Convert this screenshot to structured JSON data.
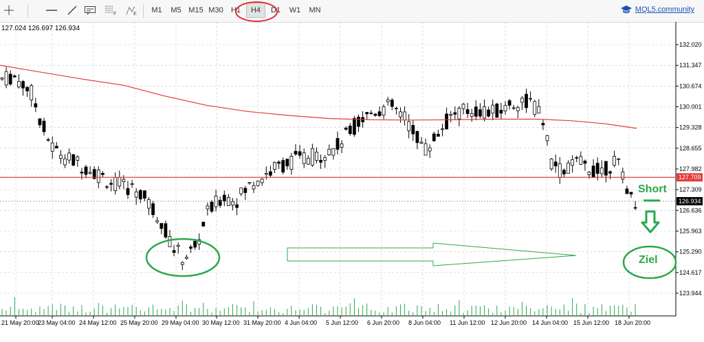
{
  "toolbar": {
    "icons": [
      "crosshair-icon",
      "horizontal-line-icon",
      "trendline-icon",
      "text-label-icon",
      "fibonacci-icon",
      "fibonacci-expansion-icon"
    ],
    "timeframes": [
      "M1",
      "M5",
      "M15",
      "M30",
      "H1",
      "H4",
      "D1",
      "W1",
      "MN"
    ],
    "active_timeframe": "H4",
    "community_link": "MQL5.community"
  },
  "chart": {
    "ohlc_readout": "127.024 126.697 126.934",
    "price_labels": [
      "132.020",
      "131.347",
      "130.674",
      "130.001",
      "129.328",
      "128.655",
      "127.982",
      "127.309",
      "126.636",
      "125.963",
      "125.290",
      "124.617",
      "123.944"
    ],
    "price_range": [
      123.7,
      132.5
    ],
    "current_price": "126.934",
    "resistance_price": "127.709",
    "time_labels": [
      "21 May 20:00",
      "23 May 04:00",
      "24 May 12:00",
      "25 May 20:00",
      "29 May 04:00",
      "30 May 12:00",
      "31 May 20:00",
      "4 Jun 04:00",
      "5 Jun 12:00",
      "6 Jun 20:00",
      "8 Jun 04:00",
      "11 Jun 12:00",
      "12 Jun 20:00",
      "14 Jun 04:00",
      "15 Jun 12:00",
      "18 Jun 20:00"
    ],
    "annotations": {
      "short_label": "Short",
      "target_label": "Ziel"
    },
    "colors": {
      "moving_average": "#e23b3b",
      "resistance_line": "#e23b3b",
      "annotation": "#2aa84a",
      "candle": "#000000",
      "volume": "#2aa84a",
      "highlight": "#e03030"
    }
  }
}
